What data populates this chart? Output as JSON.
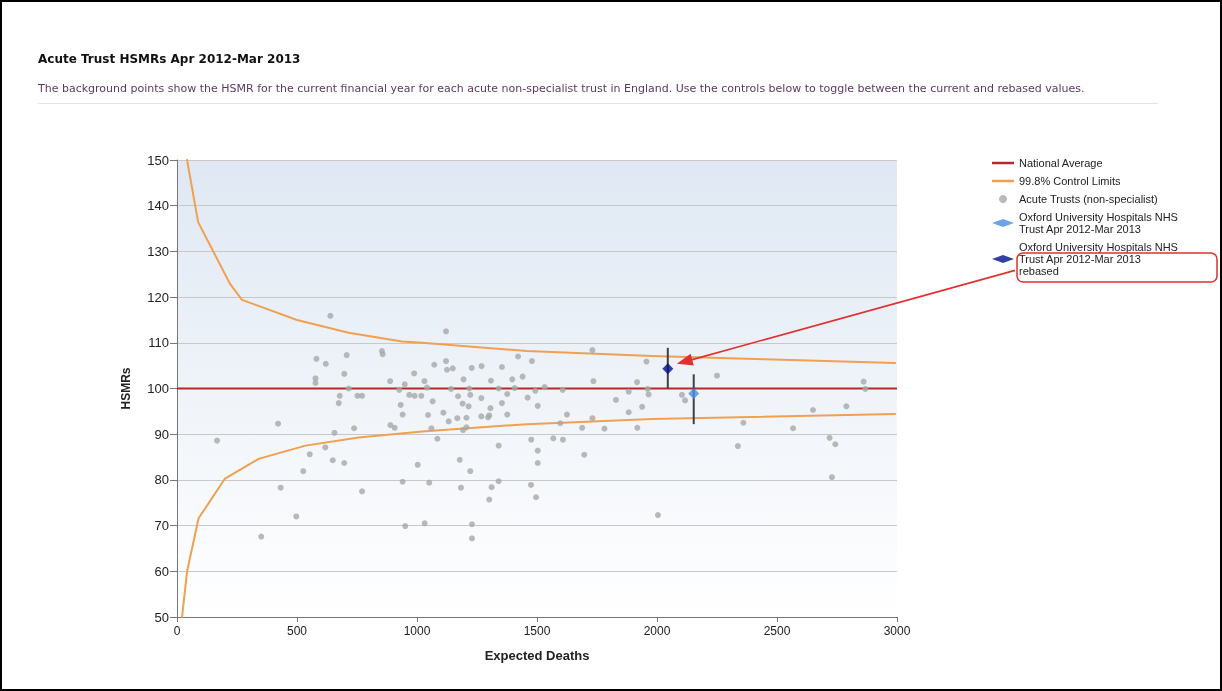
{
  "chart_data": {
    "type": "scatter",
    "title": "Acute Trust HSMRs Apr 2012-Mar 2013",
    "subtitle": "The background points show the HSMR for the current financial year for each acute non-specialist trust in England. Use the controls below to toggle between the current and rebased values.",
    "xlabel": "Expected Deaths",
    "ylabel": "HSMRs",
    "xlim": [
      0,
      3000
    ],
    "xticks": [
      0,
      500,
      1000,
      1500,
      2000,
      2500,
      3000
    ],
    "ylim": [
      50,
      150
    ],
    "yticks": [
      50,
      60,
      70,
      80,
      90,
      100,
      110,
      120,
      130,
      140,
      150
    ],
    "grid": "y",
    "legend": "right",
    "ref_lines": [
      {
        "axis": "y",
        "value": 100,
        "label": "National Average",
        "color": "#b5282c"
      }
    ],
    "series": [
      {
        "name": "99.8% Control Limits",
        "type": "line",
        "marker": "none",
        "color": "#f0a050",
        "x": [
          42,
          88,
          221,
          271,
          500,
          715,
          938,
          1021,
          1458,
          1979,
          2450,
          2992
        ],
        "values": [
          150,
          136.4,
          122.9,
          119.4,
          115,
          112.2,
          110.3,
          110,
          108.2,
          107.1,
          106.4,
          105.6
        ]
      },
      {
        "type": "line",
        "marker": "none",
        "color": "#f0a050",
        "x": [
          21,
          42,
          90,
          200,
          340,
          535,
          757,
          1021,
          1458,
          1979,
          2992
        ],
        "values": [
          50,
          60,
          71.6,
          80.3,
          84.6,
          87.5,
          89.3,
          90.6,
          92.2,
          93.3,
          94.4
        ]
      },
      {
        "name": "Acute Trusts (non-specialist)",
        "marker": "circle",
        "color": "#a8a8a8",
        "x": [
          639,
          167,
          421,
          581,
          620,
          707,
          697,
          577,
          577,
          715,
          678,
          674,
          752,
          771,
          738,
          656,
          618,
          553,
          649,
          697,
          526,
          432,
          771,
          497,
          351,
          854,
          857,
          888,
          926,
          949,
          968,
          988,
          932,
          940,
          889,
          907,
          1003,
          940,
          951,
          1121,
          1072,
          1121,
          1125,
          1149,
          1228,
          1269,
          1354,
          1421,
          1479,
          1731,
          1956,
          1031,
          1194,
          1308,
          1397,
          1440,
          1735,
          1917,
          1042,
          1142,
          1218,
          1340,
          1407,
          1493,
          1532,
          1607,
          1882,
          1965,
          990,
          1018,
          1171,
          1222,
          1268,
          1376,
          1461,
          1065,
          1190,
          1215,
          1306,
          1354,
          1503,
          1829,
          1938,
          1046,
          1110,
          1168,
          1132,
          1206,
          1268,
          1296,
          1301,
          1376,
          1625,
          1882,
          1060,
          1192,
          1206,
          1597,
          1688,
          1731,
          1781,
          1918,
          1085,
          1340,
          1476,
          1568,
          1608,
          1503,
          1697,
          1503,
          1178,
          1222,
          1051,
          1183,
          1340,
          1311,
          1475,
          1301,
          1496,
          1032,
          1229,
          1229,
          1961,
          2104,
          2117,
          2250,
          2360,
          2337,
          2004,
          2567,
          2650,
          2719,
          2743,
          2729,
          2789,
          2861,
          2868
        ],
        "values": [
          115.9,
          88.6,
          92.3,
          106.5,
          105.4,
          107.3,
          103.2,
          102.2,
          101.2,
          100,
          98.4,
          96.8,
          98.4,
          98.4,
          91.3,
          90.3,
          87.1,
          85.6,
          84.3,
          83.7,
          81.9,
          78.3,
          77.5,
          72,
          67.6,
          108.2,
          107.5,
          101.6,
          99.7,
          100.9,
          98.6,
          103.3,
          96.4,
          94.3,
          92,
          91.4,
          83.3,
          79.6,
          69.9,
          112.5,
          105.2,
          106,
          104.1,
          104.4,
          104.5,
          104.9,
          104.7,
          107,
          106,
          108.4,
          105.9,
          101.6,
          102,
          101.7,
          102,
          102.6,
          101.6,
          101.4,
          100.2,
          99.9,
          100,
          100,
          100.1,
          99.5,
          100.3,
          99.7,
          99.3,
          98.7,
          98.4,
          98.4,
          98.3,
          98.6,
          97.9,
          98.8,
          98,
          97.2,
          96.7,
          96.1,
          95.7,
          96.8,
          96.2,
          97.5,
          96,
          94.2,
          94.7,
          93.5,
          92.8,
          93.6,
          93.9,
          93.7,
          94.1,
          94.3,
          94.3,
          94.8,
          91.3,
          90.9,
          91.5,
          92.4,
          91.4,
          93.5,
          91.2,
          91.4,
          89,
          87.5,
          88.8,
          89.1,
          88.8,
          86.4,
          85.5,
          83.7,
          84.4,
          81.9,
          79.4,
          78.3,
          79.7,
          78.4,
          78.9,
          75.7,
          76.2,
          70.5,
          70.3,
          67.2,
          99.9,
          98.6,
          97.4,
          102.8,
          92.5,
          87.4,
          72.3,
          91.3,
          95.3,
          89.2,
          87.8,
          80.6,
          96.1,
          101.5,
          99.9
        ]
      },
      {
        "name": "Oxford University Hospitals NHS Trust Apr 2012-Mar 2013",
        "marker": "diamond",
        "color": "#4a8fe0",
        "x": [
          2153
        ],
        "values": [
          98.9
        ],
        "errors": [
          [
            92.2,
            103.1
          ]
        ]
      },
      {
        "name": "Oxford University Hospitals NHS Trust Apr 2012-Mar 2013 rebased",
        "marker": "diamond",
        "color": "#00108a",
        "x": [
          2045
        ],
        "values": [
          104.3
        ],
        "errors": [
          [
            100,
            108.9
          ]
        ]
      }
    ]
  }
}
